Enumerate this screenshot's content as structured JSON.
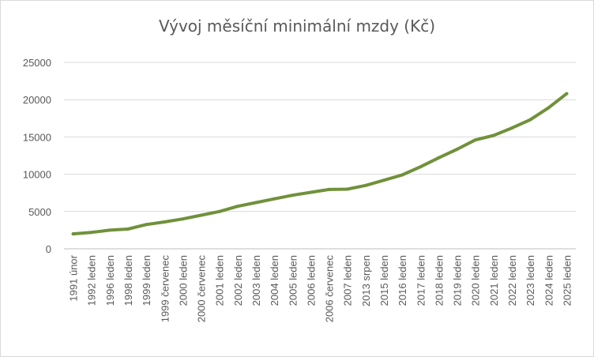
{
  "chart_data": {
    "type": "line",
    "title": "Vývoj měsíční minimální mzdy (Kč)",
    "xlabel": "",
    "ylabel": "",
    "ylim": [
      0,
      25000
    ],
    "yticks": [
      "0",
      "5000",
      "10000",
      "15000",
      "20000",
      "25000"
    ],
    "grid": true,
    "legend": "none",
    "categories": [
      "1991 únor",
      "1992 leden",
      "1996 leden",
      "1998 leden",
      "1999 leden",
      "1999 červenec",
      "2000 leden",
      "2000 červenec",
      "2001 leden",
      "2002 leden",
      "2003 leden",
      "2004 leden",
      "2005 leden",
      "2006 leden",
      "2006 červenec",
      "2007 leden",
      "2013 srpen",
      "2015 leden",
      "2016 leden",
      "2017 leden",
      "2018 leden",
      "2019 leden",
      "2020 leden",
      "2021 leden",
      "2022 leden",
      "2023 leden",
      "2024 leden",
      "2025 leden"
    ],
    "series": [
      {
        "color": "#70913a",
        "values": [
          2000,
          2200,
          2500,
          2650,
          3250,
          3600,
          4000,
          4500,
          5000,
          5700,
          6200,
          6700,
          7185,
          7570,
          7955,
          8000,
          8500,
          9200,
          9900,
          11000,
          12200,
          13350,
          14600,
          15200,
          16200,
          17300,
          18900,
          20800
        ]
      }
    ]
  }
}
